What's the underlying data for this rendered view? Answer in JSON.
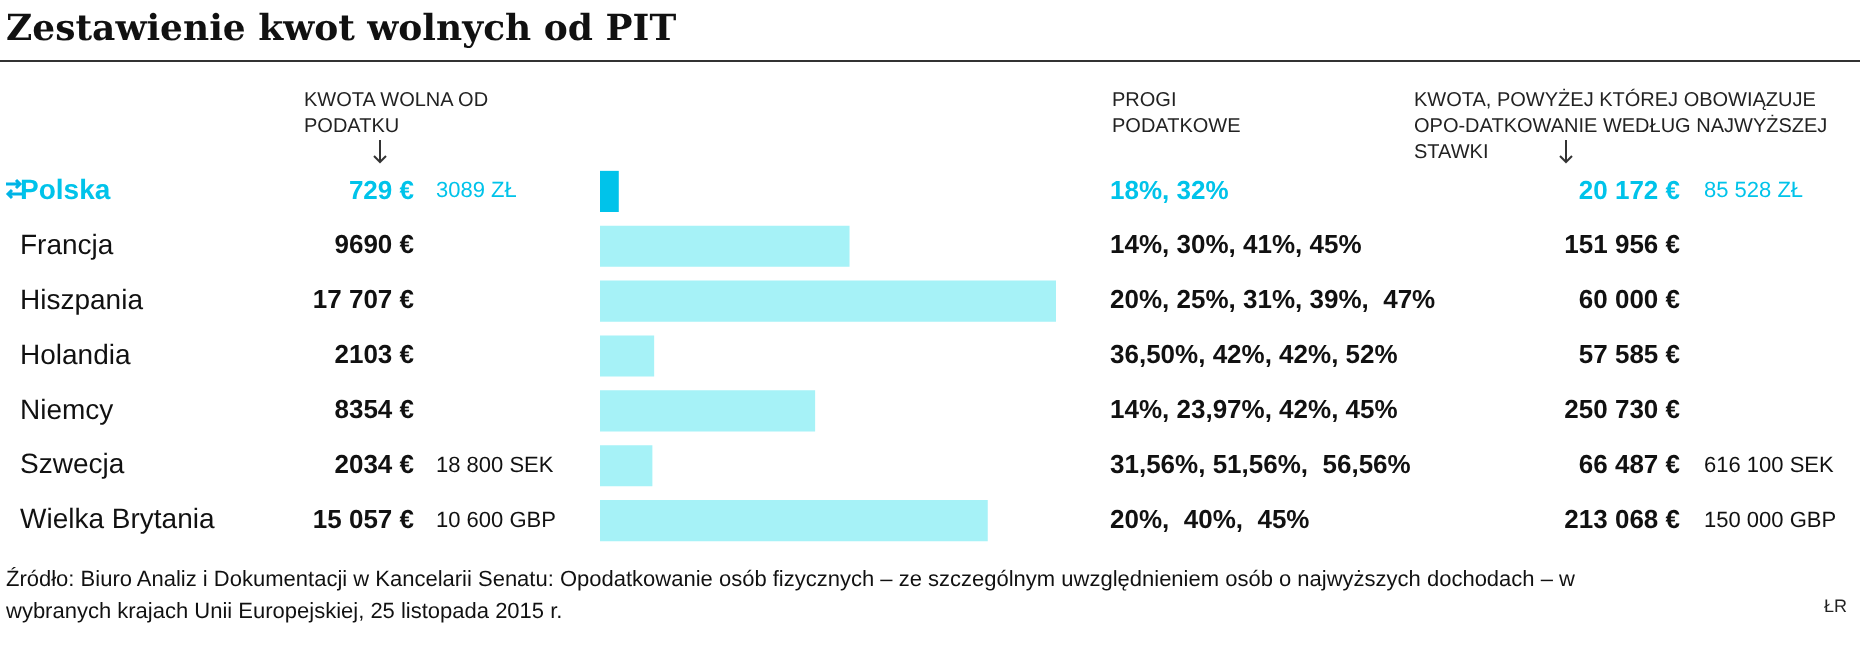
{
  "chart_data": {
    "type": "bar",
    "orientation": "horizontal",
    "title": "Zestawienie kwot wolnych od PIT",
    "xlabel": "KWOTA WOLNA OD PODATKU",
    "categories": [
      "Polska",
      "Francja",
      "Hiszpania",
      "Holandia",
      "Niemcy",
      "Szwecja",
      "Wielka Brytania"
    ],
    "values": [
      729,
      9690,
      17707,
      2103,
      8354,
      2034,
      15057
    ],
    "colors": [
      "#00c3ea",
      "#a6f2f7",
      "#a6f2f7",
      "#a6f2f7",
      "#a6f2f7",
      "#a6f2f7",
      "#a6f2f7"
    ],
    "value_labels": [
      "729 €",
      "9690 €",
      "17 707 €",
      "2103 €",
      "8354 €",
      "2034 €",
      "15 057 €"
    ],
    "annotations": [
      "PROGI PODATKOWE",
      "KWOTA, POWYŻEJ KTÓREJ OBOWIĄZUJE OPO-DATKOWANIE WEDŁUG NAJWYŻSZEJ STAWKI",
      "Źródło: Biuro Analiz i Dokumentacji w Kancelarii Senatu: Opodatkowanie osób fizycznych – ze szczególnym uwzględnieniem osób o najwyższych dochodach – w wybranych krajach Unii Europejskiej, 25 listopada 2015 r.",
      "ŁR",
      "3089 ZŁ\t18%, 32%\t20 172 €\t85 528 ZŁ",
      "14%, 30%, 41%, 45%\t151 956 €",
      "20%, 25%, 31%, 39%,  47%\t60 000 €",
      "36,50%, 42%, 42%, 52%\t57 585 €",
      "14%, 23,97%, 42%, 45%\t250 730 €",
      "18 800 SEK\t31,56%, 51,56%,  56,56%\t66 487 €\t616 100 SEK",
      "10 600 GBP\t20%,  40%,  45%\t213 068 €\t150 000 GBP"
    ]
  }
}
